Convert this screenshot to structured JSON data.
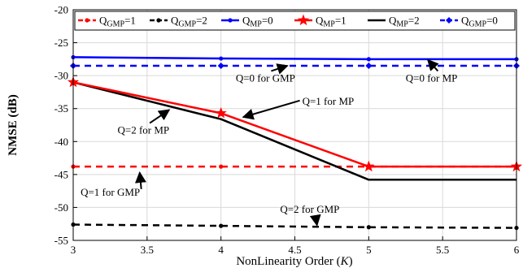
{
  "chart_data": {
    "type": "line",
    "xlabel": "NonLinearity Order (K)",
    "ylabel": "NMSE (dB)",
    "xlim": [
      3,
      6
    ],
    "ylim": [
      -55,
      -20
    ],
    "xticks": [
      3,
      3.5,
      4,
      4.5,
      5,
      5.5,
      6
    ],
    "xtick_labels": [
      "3",
      "3.5",
      "4",
      "4.5",
      "5",
      "5.5",
      "6"
    ],
    "yticks": [
      -55,
      -50,
      -45,
      -40,
      -35,
      -30,
      -25,
      -20
    ],
    "ytick_labels": [
      "-55",
      "-50",
      "-45",
      "-40",
      "-35",
      "-30",
      "-25",
      "-20"
    ],
    "grid": true,
    "legend_position": "top",
    "x": [
      3,
      4,
      5,
      6
    ],
    "series": [
      {
        "name": "Q_GMP=1",
        "legend_main": "Q",
        "legend_sub": "GMP",
        "legend_suffix": "=1",
        "values": [
          -43.8,
          -43.8,
          -43.8,
          -43.8
        ],
        "color": "#ff0000",
        "dash": "dashed",
        "marker": "dot"
      },
      {
        "name": "Q_GMP=2",
        "legend_main": "Q",
        "legend_sub": "GMP",
        "legend_suffix": "=2",
        "values": [
          -52.6,
          -52.8,
          -53.0,
          -53.1
        ],
        "color": "#000000",
        "dash": "dashed",
        "marker": "dot"
      },
      {
        "name": "Q_MP=0",
        "legend_main": "Q",
        "legend_sub": "MP",
        "legend_suffix": "=0",
        "values": [
          -27.2,
          -27.4,
          -27.5,
          -27.5
        ],
        "color": "#0000ff",
        "dash": "solid",
        "marker": "dot"
      },
      {
        "name": "Q_MP=1",
        "legend_main": "Q",
        "legend_sub": "MP",
        "legend_suffix": "=1",
        "values": [
          -31.0,
          -35.7,
          -43.8,
          -43.8
        ],
        "color": "#ff0000",
        "dash": "solid",
        "marker": "star"
      },
      {
        "name": "Q_MP=2",
        "legend_main": "Q",
        "legend_sub": "MP",
        "legend_suffix": "=2",
        "values": [
          -31.0,
          -36.6,
          -45.8,
          -45.8
        ],
        "color": "#000000",
        "dash": "solid",
        "marker": "none"
      },
      {
        "name": "Q_GMP=0",
        "legend_main": "Q",
        "legend_sub": "GMP",
        "legend_suffix": "=0",
        "values": [
          -28.5,
          -28.5,
          -28.5,
          -28.5
        ],
        "color": "#0000ff",
        "dash": "dashed",
        "marker": "diamond"
      }
    ],
    "annotations": [
      {
        "text": "Q=0 for GMP",
        "at": [
          4.1,
          -30.9
        ],
        "points_to": [
          4.45,
          -28.5
        ]
      },
      {
        "text": "Q=0 for MP",
        "at": [
          5.25,
          -30.9
        ],
        "points_to": [
          5.4,
          -27.6
        ]
      },
      {
        "text": "Q=1 for MP",
        "at": [
          4.55,
          -34.4
        ],
        "points_to": [
          4.15,
          -36.3
        ]
      },
      {
        "text": "Q=2 for MP",
        "at": [
          3.3,
          -38.8
        ],
        "points_to": [
          3.65,
          -35.2
        ]
      },
      {
        "text": "Q=1 for GMP",
        "at": [
          3.05,
          -48.2
        ],
        "points_to": [
          3.45,
          -44.7
        ]
      },
      {
        "text": "Q=2 for GMP",
        "at": [
          4.4,
          -50.8
        ],
        "points_to": [
          4.65,
          -52.7
        ]
      }
    ]
  }
}
